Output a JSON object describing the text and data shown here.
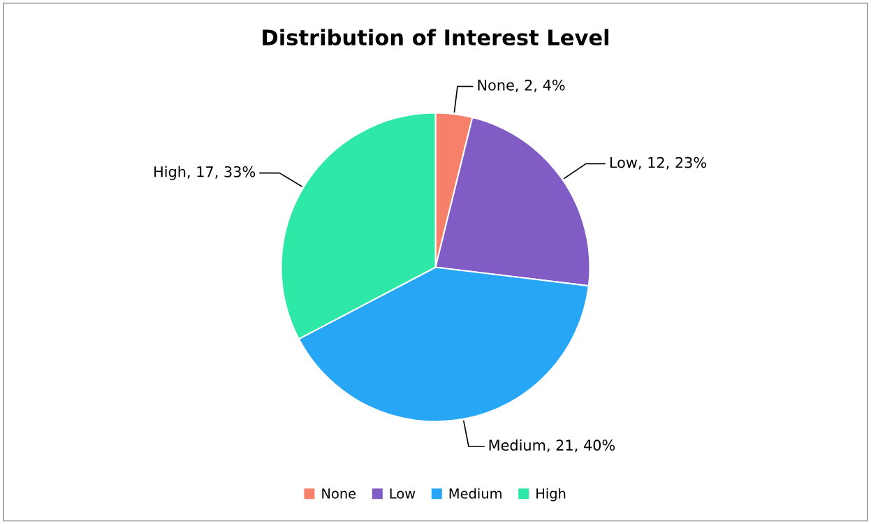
{
  "chart_data": {
    "type": "pie",
    "title": "Distribution of Interest Level",
    "categories": [
      "None",
      "Low",
      "Medium",
      "High"
    ],
    "values": [
      2,
      12,
      21,
      17
    ],
    "colors": [
      "#f7806a",
      "#815cc4",
      "#27a6f5",
      "#2de8a7"
    ],
    "value_labels": [
      "None, 2, 4%",
      "Low, 12, 23%",
      "Medium, 21, 40%",
      "High, 17, 33%"
    ],
    "legend": "bottom"
  }
}
